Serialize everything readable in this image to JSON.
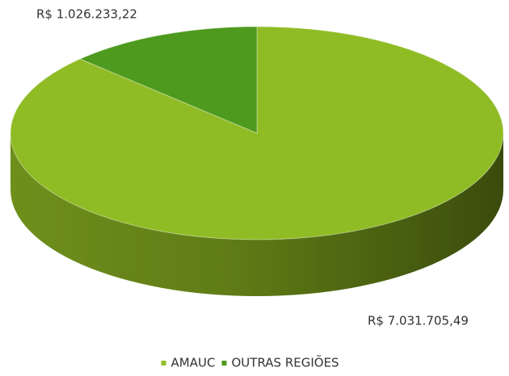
{
  "chart_data": {
    "type": "pie",
    "categories": [
      "AMAUC",
      "OUTRAS REGIÕES"
    ],
    "values": [
      7031705.49,
      1026233.22
    ],
    "value_labels": [
      "R$ 7.031.705,49",
      "R$ 1.026.233,22"
    ],
    "colors": [
      "#8fbc25",
      "#4e9a1e"
    ],
    "legend": "bottom"
  }
}
